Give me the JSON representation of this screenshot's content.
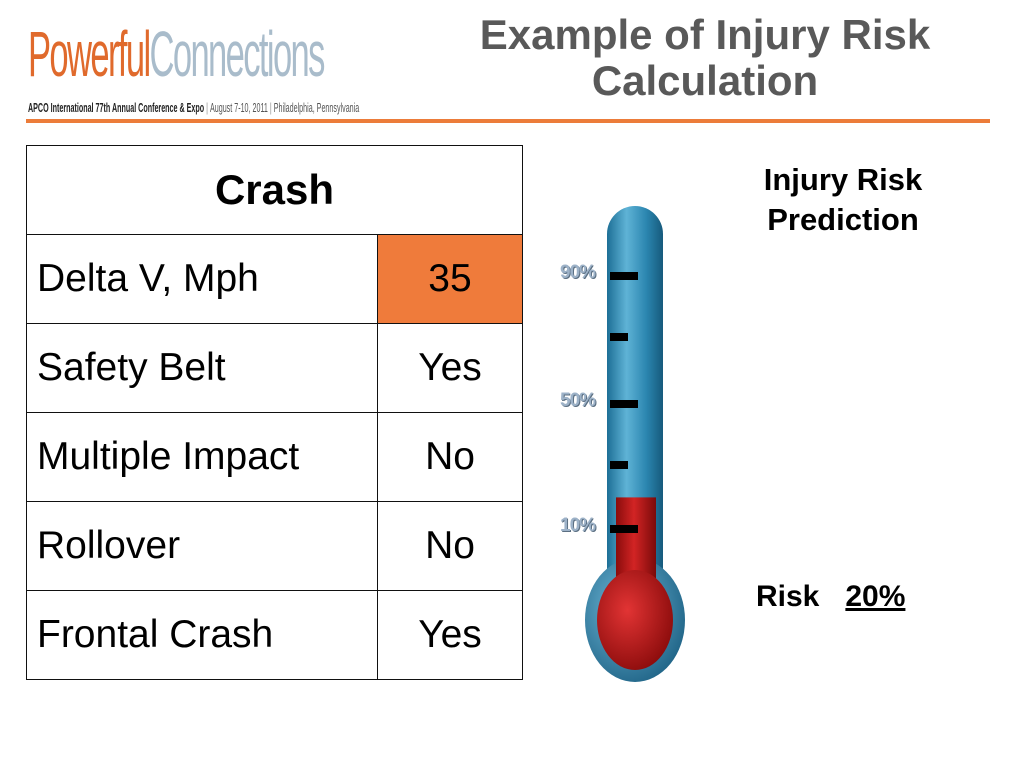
{
  "logo": {
    "word1": "Powerful",
    "word2": "Connections",
    "sub_parts": [
      "APCO International 77th Annual Conference & Expo",
      "August 7-10, 2011",
      "Philadelphia, Pennsylvania"
    ],
    "separator": "|"
  },
  "title": {
    "line1": "Example of Injury Risk",
    "line2": "Calculation"
  },
  "table": {
    "header": "Crash",
    "rows": [
      {
        "label": "Delta V, Mph",
        "value": "35"
      },
      {
        "label": "Safety Belt",
        "value": "Yes"
      },
      {
        "label": "Multiple Impact",
        "value": "No"
      },
      {
        "label": "Rollover",
        "value": "No"
      },
      {
        "label": "Frontal Crash",
        "value": "Yes"
      }
    ]
  },
  "prediction": {
    "title_line1": "Injury Risk",
    "title_line2": "Prediction",
    "risk_label": "Risk",
    "risk_value": "20%"
  },
  "thermometer": {
    "tick_labels": [
      "90%",
      "50%",
      "10%"
    ],
    "fill_level_percent": 20
  },
  "colors": {
    "accent_orange": "#ef7b3b",
    "title_gray": "#595959",
    "tube_blue": "#2f84a8",
    "mercury_red": "#c21a1a"
  }
}
